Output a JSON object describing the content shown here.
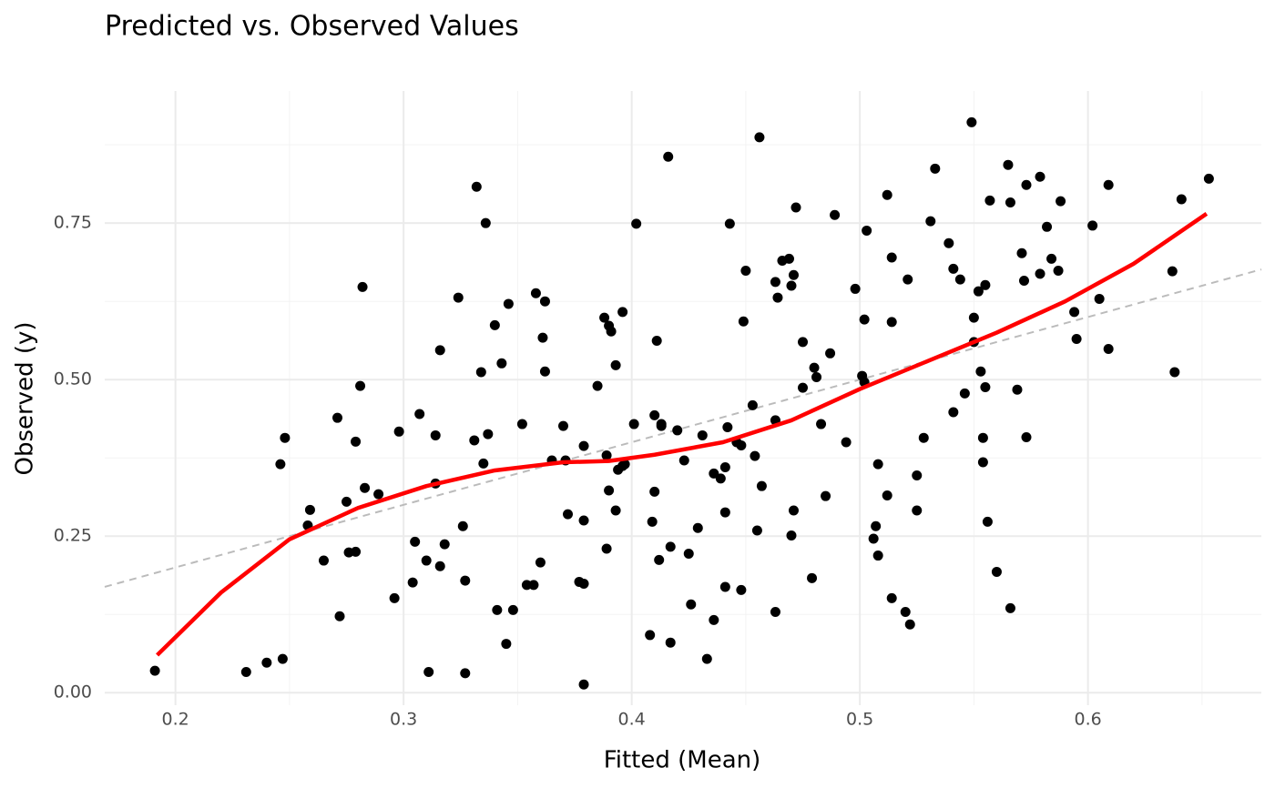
{
  "chart_data": {
    "type": "scatter",
    "title": "Predicted vs. Observed Values",
    "x_label": "Fitted (Mean)",
    "y_label": "Observed (y)",
    "xlim": [
      0.169,
      0.676
    ],
    "ylim": [
      -0.02,
      0.961
    ],
    "xticks": [
      0.2,
      0.3,
      0.4,
      0.5,
      0.6
    ],
    "yticks": [
      {
        "value": 0,
        "label": "0.00"
      },
      {
        "value": 0.25,
        "label": "0.25"
      },
      {
        "value": 0.5,
        "label": "0.50"
      },
      {
        "value": 0.75,
        "label": "0.75"
      }
    ],
    "x_minor_ticks": [
      0.25,
      0.35,
      0.45,
      0.55,
      0.65
    ],
    "y_minor_ticks": [
      0.125,
      0.375,
      0.625,
      0.875
    ],
    "grid": true,
    "series": [
      {
        "kind": "points",
        "color": "#000000",
        "x": [
          0.191,
          0.231,
          0.24,
          0.247,
          0.246,
          0.248,
          0.259,
          0.258,
          0.265,
          0.271,
          0.272,
          0.275,
          0.276,
          0.279,
          0.279,
          0.281,
          0.282,
          0.283,
          0.289,
          0.296,
          0.298,
          0.304,
          0.305,
          0.307,
          0.31,
          0.311,
          0.314,
          0.314,
          0.316,
          0.316,
          0.318,
          0.324,
          0.326,
          0.327,
          0.327,
          0.331,
          0.332,
          0.334,
          0.335,
          0.336,
          0.337,
          0.34,
          0.341,
          0.343,
          0.345,
          0.346,
          0.348,
          0.352,
          0.354,
          0.357,
          0.358,
          0.36,
          0.361,
          0.362,
          0.362,
          0.365,
          0.37,
          0.371,
          0.372,
          0.377,
          0.379,
          0.379,
          0.379,
          0.379,
          0.385,
          0.388,
          0.389,
          0.389,
          0.39,
          0.39,
          0.391,
          0.393,
          0.393,
          0.394,
          0.396,
          0.396,
          0.397,
          0.401,
          0.402,
          0.408,
          0.409,
          0.41,
          0.41,
          0.411,
          0.412,
          0.413,
          0.413,
          0.416,
          0.417,
          0.417,
          0.42,
          0.423,
          0.425,
          0.426,
          0.429,
          0.431,
          0.433,
          0.436,
          0.436,
          0.439,
          0.441,
          0.441,
          0.441,
          0.442,
          0.443,
          0.446,
          0.448,
          0.448,
          0.449,
          0.45,
          0.453,
          0.454,
          0.455,
          0.456,
          0.457,
          0.463,
          0.463,
          0.463,
          0.464,
          0.466,
          0.469,
          0.47,
          0.47,
          0.471,
          0.471,
          0.472,
          0.475,
          0.475,
          0.479,
          0.48,
          0.481,
          0.483,
          0.485,
          0.487,
          0.489,
          0.494,
          0.498,
          0.501,
          0.502,
          0.502,
          0.503,
          0.506,
          0.507,
          0.508,
          0.508,
          0.512,
          0.512,
          0.514,
          0.514,
          0.514,
          0.52,
          0.521,
          0.522,
          0.525,
          0.525,
          0.528,
          0.531,
          0.533,
          0.539,
          0.541,
          0.541,
          0.544,
          0.546,
          0.549,
          0.55,
          0.55,
          0.552,
          0.553,
          0.554,
          0.554,
          0.555,
          0.555,
          0.556,
          0.557,
          0.56,
          0.565,
          0.566,
          0.566,
          0.569,
          0.571,
          0.572,
          0.573,
          0.573,
          0.579,
          0.579,
          0.582,
          0.584,
          0.587,
          0.588,
          0.594,
          0.595,
          0.602,
          0.605,
          0.609,
          0.609,
          0.637,
          0.638,
          0.641,
          0.653
        ],
        "y": [
          0.035,
          0.033,
          0.048,
          0.054,
          0.365,
          0.407,
          0.292,
          0.267,
          0.211,
          0.439,
          0.122,
          0.305,
          0.224,
          0.225,
          0.401,
          0.49,
          0.648,
          0.327,
          0.317,
          0.151,
          0.417,
          0.176,
          0.241,
          0.445,
          0.211,
          0.033,
          0.411,
          0.334,
          0.202,
          0.547,
          0.237,
          0.631,
          0.266,
          0.031,
          0.179,
          0.403,
          0.808,
          0.512,
          0.366,
          0.75,
          0.413,
          0.587,
          0.132,
          0.526,
          0.078,
          0.621,
          0.132,
          0.429,
          0.172,
          0.172,
          0.638,
          0.208,
          0.567,
          0.625,
          0.513,
          0.371,
          0.426,
          0.371,
          0.285,
          0.177,
          0.174,
          0.013,
          0.275,
          0.394,
          0.49,
          0.599,
          0.379,
          0.23,
          0.323,
          0.586,
          0.577,
          0.523,
          0.291,
          0.356,
          0.362,
          0.608,
          0.365,
          0.429,
          0.749,
          0.092,
          0.273,
          0.321,
          0.443,
          0.562,
          0.212,
          0.426,
          0.429,
          0.856,
          0.233,
          0.08,
          0.419,
          0.371,
          0.222,
          0.141,
          0.263,
          0.411,
          0.054,
          0.35,
          0.116,
          0.342,
          0.36,
          0.169,
          0.288,
          0.424,
          0.749,
          0.4,
          0.395,
          0.164,
          0.593,
          0.674,
          0.459,
          0.378,
          0.259,
          0.887,
          0.33,
          0.129,
          0.656,
          0.435,
          0.631,
          0.69,
          0.693,
          0.65,
          0.251,
          0.667,
          0.291,
          0.775,
          0.487,
          0.56,
          0.183,
          0.519,
          0.504,
          0.429,
          0.314,
          0.542,
          0.763,
          0.4,
          0.645,
          0.506,
          0.496,
          0.596,
          0.738,
          0.246,
          0.266,
          0.365,
          0.219,
          0.795,
          0.315,
          0.695,
          0.592,
          0.151,
          0.129,
          0.66,
          0.109,
          0.347,
          0.291,
          0.407,
          0.753,
          0.837,
          0.718,
          0.677,
          0.448,
          0.66,
          0.478,
          0.911,
          0.599,
          0.56,
          0.641,
          0.513,
          0.407,
          0.368,
          0.488,
          0.651,
          0.273,
          0.786,
          0.193,
          0.843,
          0.783,
          0.135,
          0.484,
          0.702,
          0.658,
          0.811,
          0.408,
          0.824,
          0.669,
          0.744,
          0.693,
          0.674,
          0.785,
          0.608,
          0.565,
          0.746,
          0.629,
          0.811,
          0.549,
          0.673,
          0.512,
          0.788,
          0.821
        ]
      },
      {
        "kind": "smooth",
        "color": "#ff0000",
        "x": [
          0.192,
          0.22,
          0.25,
          0.28,
          0.31,
          0.34,
          0.37,
          0.39,
          0.41,
          0.44,
          0.47,
          0.5,
          0.53,
          0.56,
          0.59,
          0.62,
          0.652
        ],
        "y": [
          0.06,
          0.16,
          0.245,
          0.295,
          0.33,
          0.355,
          0.368,
          0.37,
          0.38,
          0.4,
          0.435,
          0.485,
          0.53,
          0.575,
          0.625,
          0.685,
          0.765
        ]
      },
      {
        "kind": "reference",
        "color": "#bbbbbb",
        "x": [
          0.169,
          0.676
        ],
        "y": [
          0.169,
          0.676
        ]
      }
    ]
  }
}
